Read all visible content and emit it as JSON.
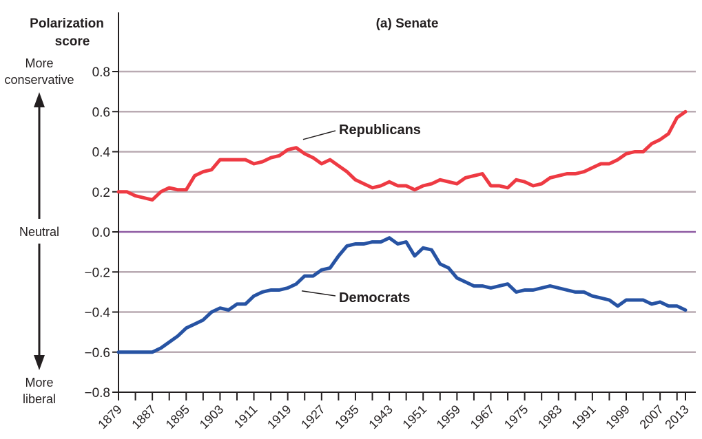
{
  "header": {
    "ylabel_line1": "Polarization",
    "ylabel_line2": "score"
  },
  "side_labels": {
    "top_line1": "More",
    "top_line2": "conservative",
    "middle": "Neutral",
    "bottom_line1": "More",
    "bottom_line2": "liberal"
  },
  "chart_data": {
    "type": "line",
    "title": "(a) Senate",
    "xlabel": "",
    "ylabel": "Polarization score",
    "ylim": [
      -0.8,
      0.8
    ],
    "xlim": [
      1879,
      2013
    ],
    "y_ticks": [
      0.8,
      0.6,
      0.4,
      0.2,
      0.0,
      -0.2,
      -0.4,
      -0.6,
      -0.8
    ],
    "y_tick_labels": [
      "0.8",
      "0.6",
      "0.4",
      "0.2",
      "0.0",
      "−0.2",
      "−0.4",
      "−0.6",
      "−0.8"
    ],
    "x_tick_labels": [
      "1879",
      "1887",
      "1895",
      "1903",
      "1911",
      "1919",
      "1927",
      "1935",
      "1943",
      "1951",
      "1959",
      "1967",
      "1975",
      "1983",
      "1991",
      "1999",
      "2007",
      "2013"
    ],
    "grid": true,
    "colors": {
      "republicans": "#ee3a43",
      "democrats": "#2753a3",
      "zero_line": "#8e5aa2",
      "grid": "#b9aab2"
    },
    "series": [
      {
        "name": "Republicans",
        "x": [
          1879,
          1881,
          1883,
          1885,
          1887,
          1889,
          1891,
          1893,
          1895,
          1897,
          1899,
          1901,
          1903,
          1905,
          1907,
          1909,
          1911,
          1913,
          1915,
          1917,
          1919,
          1921,
          1923,
          1925,
          1927,
          1929,
          1931,
          1933,
          1935,
          1937,
          1939,
          1941,
          1943,
          1945,
          1947,
          1949,
          1951,
          1953,
          1955,
          1957,
          1959,
          1961,
          1963,
          1965,
          1967,
          1969,
          1971,
          1973,
          1975,
          1977,
          1979,
          1981,
          1983,
          1985,
          1987,
          1989,
          1991,
          1993,
          1995,
          1997,
          1999,
          2001,
          2003,
          2005,
          2007,
          2009,
          2011,
          2013
        ],
        "values": [
          0.2,
          0.2,
          0.18,
          0.17,
          0.16,
          0.2,
          0.22,
          0.21,
          0.21,
          0.28,
          0.3,
          0.31,
          0.36,
          0.36,
          0.36,
          0.36,
          0.34,
          0.35,
          0.37,
          0.38,
          0.41,
          0.42,
          0.39,
          0.37,
          0.34,
          0.36,
          0.33,
          0.3,
          0.26,
          0.24,
          0.22,
          0.23,
          0.25,
          0.23,
          0.23,
          0.21,
          0.23,
          0.24,
          0.26,
          0.25,
          0.24,
          0.27,
          0.28,
          0.29,
          0.23,
          0.23,
          0.22,
          0.26,
          0.25,
          0.23,
          0.24,
          0.27,
          0.28,
          0.29,
          0.29,
          0.3,
          0.32,
          0.34,
          0.34,
          0.36,
          0.39,
          0.4,
          0.4,
          0.44,
          0.46,
          0.49,
          0.57,
          0.6
        ]
      },
      {
        "name": "Democrats",
        "x": [
          1879,
          1881,
          1883,
          1885,
          1887,
          1889,
          1891,
          1893,
          1895,
          1897,
          1899,
          1901,
          1903,
          1905,
          1907,
          1909,
          1911,
          1913,
          1915,
          1917,
          1919,
          1921,
          1923,
          1925,
          1927,
          1929,
          1931,
          1933,
          1935,
          1937,
          1939,
          1941,
          1943,
          1945,
          1947,
          1949,
          1951,
          1953,
          1955,
          1957,
          1959,
          1961,
          1963,
          1965,
          1967,
          1969,
          1971,
          1973,
          1975,
          1977,
          1979,
          1981,
          1983,
          1985,
          1987,
          1989,
          1991,
          1993,
          1995,
          1997,
          1999,
          2001,
          2003,
          2005,
          2007,
          2009,
          2011,
          2013
        ],
        "values": [
          -0.6,
          -0.6,
          -0.6,
          -0.6,
          -0.6,
          -0.58,
          -0.55,
          -0.52,
          -0.48,
          -0.46,
          -0.44,
          -0.4,
          -0.38,
          -0.39,
          -0.36,
          -0.36,
          -0.32,
          -0.3,
          -0.29,
          -0.29,
          -0.28,
          -0.26,
          -0.22,
          -0.22,
          -0.19,
          -0.18,
          -0.12,
          -0.07,
          -0.06,
          -0.06,
          -0.05,
          -0.05,
          -0.03,
          -0.06,
          -0.05,
          -0.12,
          -0.08,
          -0.09,
          -0.16,
          -0.18,
          -0.23,
          -0.25,
          -0.27,
          -0.27,
          -0.28,
          -0.27,
          -0.26,
          -0.3,
          -0.29,
          -0.29,
          -0.28,
          -0.27,
          -0.28,
          -0.29,
          -0.3,
          -0.3,
          -0.32,
          -0.33,
          -0.34,
          -0.37,
          -0.34,
          -0.34,
          -0.34,
          -0.36,
          -0.35,
          -0.37,
          -0.37,
          -0.39
        ]
      }
    ],
    "annotations": [
      {
        "text": "Republicans",
        "points_to": "Republicans",
        "at_x": 1921
      },
      {
        "text": "Democrats",
        "points_to": "Democrats",
        "at_x": 1921
      }
    ]
  }
}
